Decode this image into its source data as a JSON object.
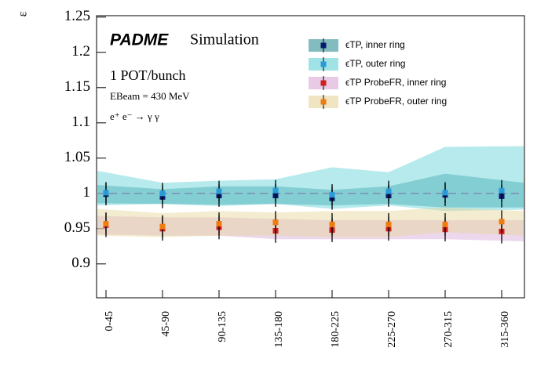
{
  "chart_data": {
    "type": "errorbar",
    "y_label": "ε",
    "texts": [
      "PADME",
      "Simulation",
      "1 POT/bunch",
      "EBeam = 430 MeV",
      "e⁺ e⁻ → γ γ"
    ],
    "categories": [
      "0-45",
      "45-90",
      "90-135",
      "135-180",
      "180-225",
      "225-270",
      "270-315",
      "315-360"
    ],
    "ylim": [
      0.852,
      1.252
    ],
    "yticks": [
      0.9,
      0.95,
      1,
      1.05,
      1.1,
      1.15,
      1.2,
      1.25
    ],
    "reference_line": 1,
    "series": [
      {
        "name": "ϵTP, inner ring",
        "color": "#0a1a6e",
        "band_color": "#2f8f95",
        "values": [
          0.999,
          0.995,
          0.997,
          0.997,
          0.993,
          0.997,
          0.998,
          0.996
        ],
        "errors": [
          0.016,
          0.016,
          0.016,
          0.016,
          0.016,
          0.016,
          0.016,
          0.016
        ],
        "band_low": [
          0.986,
          0.985,
          0.984,
          0.985,
          0.983,
          0.985,
          0.98,
          0.98
        ],
        "band_high": [
          1.012,
          1.006,
          1.01,
          1.01,
          1.005,
          1.01,
          1.028,
          1.015
        ]
      },
      {
        "name": "ϵTP, outer ring",
        "color": "#2a9ad8",
        "band_color": "#5fd0d6",
        "values": [
          1.001,
          1.0,
          1.003,
          1.004,
          0.998,
          1.003,
          1.001,
          1.004
        ],
        "errors": [
          0.015,
          0.015,
          0.015,
          0.015,
          0.015,
          0.015,
          0.015,
          0.015
        ],
        "band_low": [
          0.983,
          0.985,
          0.982,
          0.985,
          0.978,
          0.983,
          0.975,
          0.977
        ],
        "band_high": [
          1.032,
          1.015,
          1.018,
          1.02,
          1.037,
          1.03,
          1.066,
          1.067
        ]
      },
      {
        "name": "ϵTP ProbeFR, inner ring",
        "color": "#d21e1e",
        "band_color": "#d8a6d6",
        "values": [
          0.955,
          0.95,
          0.952,
          0.947,
          0.948,
          0.95,
          0.949,
          0.946
        ],
        "errors": [
          0.017,
          0.017,
          0.017,
          0.017,
          0.017,
          0.017,
          0.017,
          0.017
        ],
        "band_low": [
          0.942,
          0.94,
          0.94,
          0.935,
          0.935,
          0.935,
          0.935,
          0.932
        ],
        "band_high": [
          0.968,
          0.966,
          0.966,
          0.964,
          0.962,
          0.962,
          0.962,
          0.962
        ]
      },
      {
        "name": "ϵTP ProbeFR, outer ring",
        "color": "#f07c10",
        "band_color": "#e6d49a",
        "values": [
          0.957,
          0.953,
          0.957,
          0.959,
          0.956,
          0.956,
          0.956,
          0.96
        ],
        "errors": [
          0.016,
          0.016,
          0.016,
          0.016,
          0.016,
          0.016,
          0.016,
          0.016
        ],
        "band_low": [
          0.94,
          0.938,
          0.94,
          0.94,
          0.938,
          0.938,
          0.945,
          0.94
        ],
        "band_high": [
          0.978,
          0.972,
          0.975,
          0.973,
          0.975,
          0.975,
          0.98,
          0.975
        ]
      }
    ]
  }
}
